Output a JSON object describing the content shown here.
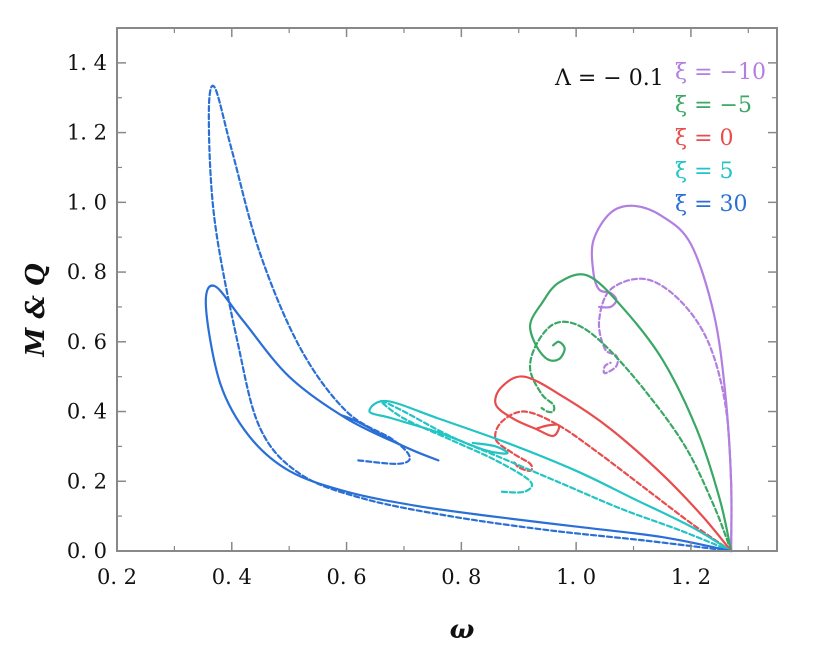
{
  "chart_data": {
    "type": "line",
    "title": "",
    "xlabel": "ω",
    "ylabel": "M & Q",
    "xlim": [
      0.2,
      1.35
    ],
    "ylim": [
      0.0,
      1.5
    ],
    "xticks": [
      0.2,
      0.4,
      0.6,
      0.8,
      1.0,
      1.2
    ],
    "xtick_labels": [
      "0. 2",
      "0. 4",
      "0. 6",
      "0. 8",
      "1. 0",
      "1. 2"
    ],
    "yticks": [
      0.0,
      0.2,
      0.4,
      0.6,
      0.8,
      1.0,
      1.2,
      1.4
    ],
    "ytick_labels": [
      "0. 0",
      "0. 2",
      "0. 4",
      "0. 6",
      "0. 8",
      "1. 0",
      "1. 2",
      "1. 4"
    ],
    "grid": false,
    "annotation": "Λ = − 0.1",
    "legend_position": "top-right",
    "legend_note": "solid and dashed curves share colors per ξ",
    "series": [
      {
        "name": "ξ = −10",
        "color": "#b27fe0",
        "style": "solid",
        "x": [
          1.27,
          1.27,
          1.26,
          1.24,
          1.2,
          1.15,
          1.1,
          1.06,
          1.03,
          1.03,
          1.04,
          1.06,
          1.07,
          1.06,
          1.04
        ],
        "y": [
          0.0,
          0.2,
          0.45,
          0.68,
          0.88,
          0.96,
          0.99,
          0.97,
          0.89,
          0.8,
          0.75,
          0.74,
          0.72,
          0.7,
          0.7
        ]
      },
      {
        "name": "ξ = −10",
        "color": "#b27fe0",
        "style": "dashed",
        "x": [
          1.27,
          1.27,
          1.26,
          1.23,
          1.18,
          1.12,
          1.06,
          1.04,
          1.05,
          1.07,
          1.07,
          1.05,
          1.05,
          1.06
        ],
        "y": [
          0.0,
          0.2,
          0.42,
          0.6,
          0.72,
          0.78,
          0.75,
          0.66,
          0.58,
          0.56,
          0.53,
          0.51,
          0.53,
          0.54
        ]
      },
      {
        "name": "ξ = −5",
        "color": "#3aa864",
        "style": "solid",
        "x": [
          1.27,
          1.25,
          1.21,
          1.15,
          1.08,
          1.02,
          0.97,
          0.94,
          0.92,
          0.93,
          0.95,
          0.97,
          0.98,
          0.97,
          0.96
        ],
        "y": [
          0.0,
          0.15,
          0.35,
          0.55,
          0.7,
          0.79,
          0.77,
          0.71,
          0.65,
          0.59,
          0.55,
          0.55,
          0.58,
          0.6,
          0.59
        ]
      },
      {
        "name": "ξ = −5",
        "color": "#3aa864",
        "style": "dashed",
        "x": [
          1.27,
          1.24,
          1.19,
          1.12,
          1.05,
          1.0,
          0.96,
          0.93,
          0.92,
          0.94,
          0.96,
          0.96,
          0.95,
          0.94
        ],
        "y": [
          0.0,
          0.13,
          0.3,
          0.46,
          0.59,
          0.65,
          0.65,
          0.59,
          0.52,
          0.45,
          0.42,
          0.4,
          0.4,
          0.41
        ]
      },
      {
        "name": "ξ = 0",
        "color": "#e84c4c",
        "style": "solid",
        "x": [
          1.27,
          1.22,
          1.15,
          1.06,
          0.98,
          0.91,
          0.87,
          0.86,
          0.89,
          0.93,
          0.96,
          0.97,
          0.95,
          0.93
        ],
        "y": [
          0.0,
          0.1,
          0.22,
          0.35,
          0.44,
          0.5,
          0.47,
          0.42,
          0.38,
          0.35,
          0.33,
          0.36,
          0.36,
          0.35
        ]
      },
      {
        "name": "ξ = 0",
        "color": "#e84c4c",
        "style": "dashed",
        "x": [
          1.27,
          1.2,
          1.12,
          1.04,
          0.97,
          0.91,
          0.87,
          0.86,
          0.89,
          0.92,
          0.92,
          0.9,
          0.89
        ],
        "y": [
          0.0,
          0.08,
          0.18,
          0.28,
          0.36,
          0.4,
          0.37,
          0.32,
          0.28,
          0.25,
          0.23,
          0.24,
          0.26
        ]
      },
      {
        "name": "ξ = 5",
        "color": "#22c4c4",
        "style": "solid",
        "x": [
          1.27,
          1.2,
          1.1,
          1.0,
          0.88,
          0.76,
          0.67,
          0.64,
          0.68,
          0.76,
          0.84,
          0.88,
          0.86,
          0.82
        ],
        "y": [
          0.0,
          0.07,
          0.15,
          0.23,
          0.31,
          0.38,
          0.43,
          0.4,
          0.38,
          0.34,
          0.29,
          0.28,
          0.3,
          0.31
        ]
      },
      {
        "name": "ξ = 5",
        "color": "#22c4c4",
        "style": "dashed",
        "x": [
          1.27,
          1.18,
          1.08,
          0.98,
          0.88,
          0.78,
          0.7,
          0.66,
          0.7,
          0.78,
          0.86,
          0.92,
          0.91,
          0.87
        ],
        "y": [
          0.0,
          0.06,
          0.12,
          0.19,
          0.26,
          0.33,
          0.4,
          0.43,
          0.38,
          0.32,
          0.26,
          0.2,
          0.17,
          0.17
        ]
      },
      {
        "name": "ξ = 30",
        "color": "#2a6fd6",
        "style": "solid",
        "x": [
          1.27,
          1.15,
          1.0,
          0.85,
          0.72,
          0.6,
          0.5,
          0.43,
          0.38,
          0.355,
          0.37,
          0.42,
          0.5,
          0.6,
          0.7,
          0.76,
          0.7,
          0.62,
          0.59
        ],
        "y": [
          0.0,
          0.04,
          0.07,
          0.1,
          0.13,
          0.17,
          0.23,
          0.33,
          0.48,
          0.7,
          0.76,
          0.66,
          0.5,
          0.38,
          0.3,
          0.26,
          0.3,
          0.37,
          0.39
        ]
      },
      {
        "name": "ξ = 30",
        "color": "#2a6fd6",
        "style": "dashed",
        "x": [
          1.27,
          1.12,
          0.95,
          0.78,
          0.63,
          0.52,
          0.45,
          0.41,
          0.37,
          0.36,
          0.37,
          0.4,
          0.45,
          0.52,
          0.6,
          0.68,
          0.71,
          0.69,
          0.62
        ],
        "y": [
          0.0,
          0.03,
          0.06,
          0.1,
          0.15,
          0.22,
          0.35,
          0.6,
          0.95,
          1.25,
          1.33,
          1.15,
          0.85,
          0.58,
          0.4,
          0.32,
          0.27,
          0.25,
          0.26
        ]
      }
    ],
    "legend": [
      {
        "label": "ξ = −10",
        "color": "#b27fe0"
      },
      {
        "label": "ξ = −5",
        "color": "#3aa864"
      },
      {
        "label": "ξ = 0",
        "color": "#e84c4c"
      },
      {
        "label": "ξ = 5",
        "color": "#22c4c4"
      },
      {
        "label": "ξ = 30",
        "color": "#2a6fd6"
      }
    ]
  }
}
